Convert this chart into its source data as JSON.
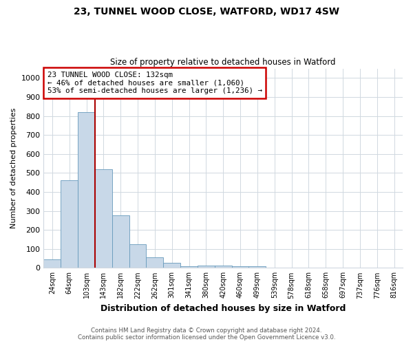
{
  "title_line1": "23, TUNNEL WOOD CLOSE, WATFORD, WD17 4SW",
  "title_line2": "Size of property relative to detached houses in Watford",
  "xlabel": "Distribution of detached houses by size in Watford",
  "ylabel": "Number of detached properties",
  "categories": [
    "24sqm",
    "64sqm",
    "103sqm",
    "143sqm",
    "182sqm",
    "222sqm",
    "262sqm",
    "301sqm",
    "341sqm",
    "380sqm",
    "420sqm",
    "460sqm",
    "499sqm",
    "539sqm",
    "578sqm",
    "618sqm",
    "658sqm",
    "697sqm",
    "737sqm",
    "776sqm",
    "816sqm"
  ],
  "values": [
    45,
    460,
    820,
    520,
    275,
    125,
    55,
    25,
    10,
    12,
    12,
    8,
    8,
    0,
    0,
    0,
    0,
    0,
    0,
    0,
    0
  ],
  "bar_color": "#c8d8e8",
  "bar_edge_color": "#6699bb",
  "red_line_x": 2.5,
  "red_line_color": "#aa0000",
  "annotation_text": "23 TUNNEL WOOD CLOSE: 132sqm\n← 46% of detached houses are smaller (1,060)\n53% of semi-detached houses are larger (1,236) →",
  "annotation_box_color": "#ffffff",
  "annotation_box_edge": "#cc0000",
  "ylim": [
    0,
    1050
  ],
  "yticks": [
    0,
    100,
    200,
    300,
    400,
    500,
    600,
    700,
    800,
    900,
    1000
  ],
  "footer_line1": "Contains HM Land Registry data © Crown copyright and database right 2024.",
  "footer_line2": "Contains public sector information licensed under the Open Government Licence v3.0.",
  "background_color": "#ffffff",
  "grid_color": "#d0d8e0"
}
